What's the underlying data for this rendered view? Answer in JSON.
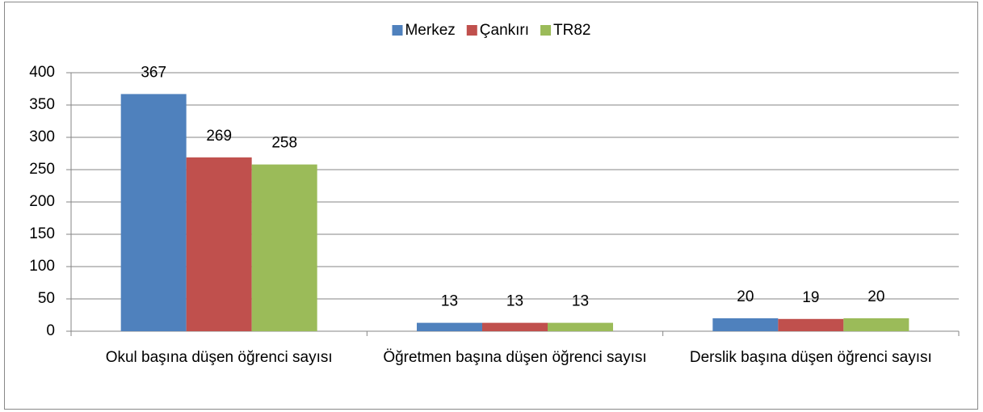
{
  "chart_data": {
    "type": "bar",
    "categories": [
      "Okul başına düşen öğrenci sayısı",
      "Öğretmen başına düşen öğrenci sayısı",
      "Derslik başına düşen öğrenci sayısı"
    ],
    "series": [
      {
        "name": "Merkez",
        "color": "#4f81bd",
        "values": [
          367,
          13,
          20
        ]
      },
      {
        "name": "Çankırı",
        "color": "#c0504d",
        "values": [
          269,
          13,
          19
        ]
      },
      {
        "name": "TR82",
        "color": "#9bbb59",
        "values": [
          258,
          13,
          20
        ]
      }
    ],
    "ylim": [
      0,
      400
    ],
    "yticks": [
      0,
      50,
      100,
      150,
      200,
      250,
      300,
      350,
      400
    ],
    "grid": true,
    "legend": "top"
  }
}
